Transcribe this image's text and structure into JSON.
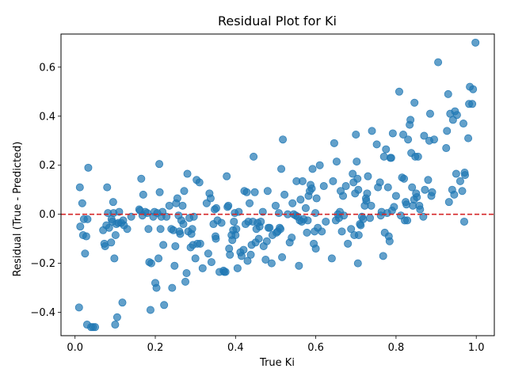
{
  "chart_data": {
    "type": "scatter",
    "title": "Residual Plot for Ki",
    "xlabel": "True Ki",
    "ylabel": "Residual (True - Predicted)",
    "xlim": [
      -0.035,
      1.045
    ],
    "ylim": [
      -0.495,
      0.735
    ],
    "xticks": [
      0.0,
      0.2,
      0.4,
      0.6,
      0.8,
      1.0
    ],
    "xtick_labels": [
      "0.0",
      "0.2",
      "0.4",
      "0.6",
      "0.8",
      "1.0"
    ],
    "yticks": [
      -0.4,
      -0.2,
      0.0,
      0.2,
      0.4,
      0.6
    ],
    "ytick_labels": [
      "−0.4",
      "−0.2",
      "0.0",
      "0.2",
      "0.4",
      "0.6"
    ],
    "grid": false,
    "legend": "none",
    "point_color": "#1f77b4",
    "reference_line": {
      "y": 0,
      "color": "#d62728",
      "style": "dashed"
    },
    "points": [
      [
        0.01,
        -0.38
      ],
      [
        0.012,
        0.11
      ],
      [
        0.013,
        -0.05
      ],
      [
        0.018,
        0.045
      ],
      [
        0.02,
        -0.085
      ],
      [
        0.022,
        -0.02
      ],
      [
        0.025,
        -0.16
      ],
      [
        0.028,
        -0.09
      ],
      [
        0.03,
        -0.45
      ],
      [
        0.031,
        -0.02
      ],
      [
        0.033,
        0.19
      ],
      [
        0.04,
        -0.46
      ],
      [
        0.045,
        -0.46
      ],
      [
        0.05,
        -0.46
      ],
      [
        0.07,
        -0.065
      ],
      [
        0.073,
        -0.12
      ],
      [
        0.075,
        -0.13
      ],
      [
        0.078,
        -0.045
      ],
      [
        0.08,
        0.11
      ],
      [
        0.082,
        0.005
      ],
      [
        0.085,
        -0.055
      ],
      [
        0.09,
        -0.115
      ],
      [
        0.091,
        -0.02
      ],
      [
        0.093,
        -0.03
      ],
      [
        0.095,
        0.05
      ],
      [
        0.096,
        0.005
      ],
      [
        0.098,
        -0.18
      ],
      [
        0.1,
        -0.45
      ],
      [
        0.101,
        -0.085
      ],
      [
        0.103,
        -0.04
      ],
      [
        0.105,
        -0.42
      ],
      [
        0.108,
        -0.035
      ],
      [
        0.11,
        0.01
      ],
      [
        0.115,
        -0.035
      ],
      [
        0.118,
        -0.36
      ],
      [
        0.12,
        -0.025
      ],
      [
        0.122,
        -0.045
      ],
      [
        0.13,
        -0.06
      ],
      [
        0.14,
        -0.01
      ],
      [
        0.16,
        0.02
      ],
      [
        0.162,
        0.015
      ],
      [
        0.165,
        0.145
      ],
      [
        0.168,
        -0.005
      ],
      [
        0.17,
        0.08
      ],
      [
        0.175,
        0.01
      ],
      [
        0.18,
        0.005
      ],
      [
        0.183,
        -0.06
      ],
      [
        0.185,
        -0.195
      ],
      [
        0.188,
        -0.39
      ],
      [
        0.19,
        -0.2
      ],
      [
        0.195,
        -0.01
      ],
      [
        0.198,
        0.01
      ],
      [
        0.2,
        -0.28
      ],
      [
        0.203,
        -0.3
      ],
      [
        0.205,
        0.005
      ],
      [
        0.208,
        -0.18
      ],
      [
        0.21,
        0.205
      ],
      [
        0.211,
        0.09
      ],
      [
        0.213,
        -0.06
      ],
      [
        0.215,
        -0.01
      ],
      [
        0.218,
        0.01
      ],
      [
        0.22,
        -0.125
      ],
      [
        0.222,
        -0.37
      ],
      [
        0.228,
        -0.01
      ],
      [
        0.235,
        0.035
      ],
      [
        0.24,
        -0.06
      ],
      [
        0.242,
        -0.3
      ],
      [
        0.245,
        -0.065
      ],
      [
        0.248,
        -0.21
      ],
      [
        0.25,
        -0.13
      ],
      [
        0.252,
        0.045
      ],
      [
        0.255,
        0.065
      ],
      [
        0.258,
        -0.005
      ],
      [
        0.26,
        -0.07
      ],
      [
        0.262,
        -0.08
      ],
      [
        0.265,
        -0.025
      ],
      [
        0.268,
        0.035
      ],
      [
        0.27,
        -0.04
      ],
      [
        0.272,
        0.095
      ],
      [
        0.275,
        -0.275
      ],
      [
        0.278,
        -0.24
      ],
      [
        0.28,
        0.165
      ],
      [
        0.282,
        -0.07
      ],
      [
        0.285,
        -0.015
      ],
      [
        0.288,
        -0.135
      ],
      [
        0.29,
        -0.08
      ],
      [
        0.292,
        -0.06
      ],
      [
        0.294,
        -0.125
      ],
      [
        0.296,
        -0.01
      ],
      [
        0.3,
        -0.18
      ],
      [
        0.303,
        0.14
      ],
      [
        0.305,
        -0.12
      ],
      [
        0.31,
        0.13
      ],
      [
        0.312,
        -0.12
      ],
      [
        0.318,
        -0.22
      ],
      [
        0.328,
        0.045
      ],
      [
        0.332,
        -0.16
      ],
      [
        0.335,
        0.085
      ],
      [
        0.338,
        0.065
      ],
      [
        0.34,
        -0.195
      ],
      [
        0.345,
        -0.04
      ],
      [
        0.348,
        0.02
      ],
      [
        0.35,
        -0.09
      ],
      [
        0.351,
        -0.1
      ],
      [
        0.352,
        0.025
      ],
      [
        0.355,
        -0.025
      ],
      [
        0.36,
        -0.235
      ],
      [
        0.365,
        -0.035
      ],
      [
        0.37,
        -0.23
      ],
      [
        0.372,
        -0.235
      ],
      [
        0.375,
        -0.235
      ],
      [
        0.378,
        0.155
      ],
      [
        0.38,
        0.03
      ],
      [
        0.382,
        0.035
      ],
      [
        0.384,
        -0.14
      ],
      [
        0.386,
        -0.165
      ],
      [
        0.39,
        -0.085
      ],
      [
        0.392,
        -0.105
      ],
      [
        0.394,
        -0.065
      ],
      [
        0.396,
        -0.03
      ],
      [
        0.398,
        0.005
      ],
      [
        0.4,
        -0.085
      ],
      [
        0.402,
        -0.06
      ],
      [
        0.405,
        -0.22
      ],
      [
        0.408,
        0.01
      ],
      [
        0.412,
        -0.155
      ],
      [
        0.415,
        -0.17
      ],
      [
        0.42,
        -0.145
      ],
      [
        0.422,
        0.095
      ],
      [
        0.425,
        -0.04
      ],
      [
        0.428,
        0.09
      ],
      [
        0.43,
        -0.19
      ],
      [
        0.432,
        -0.03
      ],
      [
        0.435,
        0.045
      ],
      [
        0.438,
        -0.165
      ],
      [
        0.44,
        -0.125
      ],
      [
        0.443,
        -0.03
      ],
      [
        0.445,
        0.235
      ],
      [
        0.448,
        0.09
      ],
      [
        0.45,
        -0.115
      ],
      [
        0.452,
        -0.06
      ],
      [
        0.455,
        -0.035
      ],
      [
        0.458,
        -0.1
      ],
      [
        0.46,
        -0.05
      ],
      [
        0.463,
        -0.03
      ],
      [
        0.468,
        0.01
      ],
      [
        0.47,
        -0.13
      ],
      [
        0.475,
        -0.185
      ],
      [
        0.478,
        -0.11
      ],
      [
        0.48,
        0.095
      ],
      [
        0.482,
        -0.055
      ],
      [
        0.485,
        -0.055
      ],
      [
        0.49,
        -0.2
      ],
      [
        0.492,
        -0.085
      ],
      [
        0.5,
        0.035
      ],
      [
        0.502,
        -0.075
      ],
      [
        0.505,
        -0.07
      ],
      [
        0.508,
        0.005
      ],
      [
        0.51,
        -0.055
      ],
      [
        0.512,
        -0.06
      ],
      [
        0.514,
        0.185
      ],
      [
        0.516,
        -0.175
      ],
      [
        0.518,
        0.305
      ],
      [
        0.522,
        0.08
      ],
      [
        0.53,
        0.0
      ],
      [
        0.535,
        -0.115
      ],
      [
        0.54,
        -0.095
      ],
      [
        0.542,
        0.045
      ],
      [
        0.545,
        0.0
      ],
      [
        0.55,
        -0.005
      ],
      [
        0.552,
        0.135
      ],
      [
        0.555,
        -0.01
      ],
      [
        0.558,
        -0.21
      ],
      [
        0.56,
        -0.025
      ],
      [
        0.562,
        0.06
      ],
      [
        0.565,
        -0.03
      ],
      [
        0.567,
        0.135
      ],
      [
        0.57,
        -0.02
      ],
      [
        0.575,
        0.025
      ],
      [
        0.578,
        -0.075
      ],
      [
        0.58,
        -0.025
      ],
      [
        0.582,
        0.075
      ],
      [
        0.585,
        0.095
      ],
      [
        0.587,
        0.12
      ],
      [
        0.59,
        0.105
      ],
      [
        0.592,
        0.185
      ],
      [
        0.595,
        -0.12
      ],
      [
        0.597,
        -0.07
      ],
      [
        0.599,
        0.005
      ],
      [
        0.6,
        -0.14
      ],
      [
        0.602,
        0.065
      ],
      [
        0.605,
        -0.055
      ],
      [
        0.61,
        0.2
      ],
      [
        0.615,
        -0.07
      ],
      [
        0.62,
        0.115
      ],
      [
        0.625,
        -0.03
      ],
      [
        0.64,
        -0.18
      ],
      [
        0.643,
        0.135
      ],
      [
        0.646,
        0.29
      ],
      [
        0.65,
        -0.025
      ],
      [
        0.652,
        0.215
      ],
      [
        0.655,
        0.0
      ],
      [
        0.658,
        -0.015
      ],
      [
        0.66,
        0.01
      ],
      [
        0.662,
        0.095
      ],
      [
        0.665,
        -0.07
      ],
      [
        0.668,
        0.075
      ],
      [
        0.67,
        -0.005
      ],
      [
        0.675,
        0.115
      ],
      [
        0.68,
        -0.12
      ],
      [
        0.688,
        -0.06
      ],
      [
        0.692,
        0.165
      ],
      [
        0.694,
        0.13
      ],
      [
        0.696,
        -0.085
      ],
      [
        0.698,
        0.085
      ],
      [
        0.7,
        0.325
      ],
      [
        0.702,
        0.215
      ],
      [
        0.704,
        0.145
      ],
      [
        0.705,
        -0.2
      ],
      [
        0.706,
        0.1
      ],
      [
        0.707,
        -0.085
      ],
      [
        0.71,
        -0.04
      ],
      [
        0.712,
        -0.045
      ],
      [
        0.715,
        -0.01
      ],
      [
        0.718,
        -0.02
      ],
      [
        0.722,
        0.035
      ],
      [
        0.725,
        0.065
      ],
      [
        0.726,
        0.055
      ],
      [
        0.728,
        0.085
      ],
      [
        0.73,
        0.155
      ],
      [
        0.735,
        -0.015
      ],
      [
        0.738,
        0.035
      ],
      [
        0.74,
        0.34
      ],
      [
        0.752,
        0.285
      ],
      [
        0.755,
        0.11
      ],
      [
        0.76,
        0.13
      ],
      [
        0.762,
        -0.005
      ],
      [
        0.764,
        0.01
      ],
      [
        0.768,
        -0.17
      ],
      [
        0.77,
        0.235
      ],
      [
        0.772,
        -0.075
      ],
      [
        0.775,
        0.265
      ],
      [
        0.778,
        0.005
      ],
      [
        0.78,
        0.11
      ],
      [
        0.782,
        -0.09
      ],
      [
        0.784,
        -0.11
      ],
      [
        0.786,
        0.23
      ],
      [
        0.788,
        0.23
      ],
      [
        0.79,
        0.015
      ],
      [
        0.792,
        0.33
      ],
      [
        0.795,
        0.03
      ],
      [
        0.8,
        0.075
      ],
      [
        0.808,
        0.5
      ],
      [
        0.812,
        -0.005
      ],
      [
        0.815,
        0.15
      ],
      [
        0.818,
        0.325
      ],
      [
        0.82,
        0.145
      ],
      [
        0.822,
        -0.025
      ],
      [
        0.824,
        0.05
      ],
      [
        0.826,
        0.04
      ],
      [
        0.828,
        -0.025
      ],
      [
        0.83,
        0.305
      ],
      [
        0.834,
        0.365
      ],
      [
        0.836,
        0.385
      ],
      [
        0.838,
        0.25
      ],
      [
        0.84,
        0.11
      ],
      [
        0.842,
        0.035
      ],
      [
        0.845,
        0.06
      ],
      [
        0.846,
        0.455
      ],
      [
        0.848,
        0.235
      ],
      [
        0.85,
        0.085
      ],
      [
        0.852,
        0.07
      ],
      [
        0.855,
        0.235
      ],
      [
        0.858,
        0.035
      ],
      [
        0.86,
        0.02
      ],
      [
        0.868,
        -0.01
      ],
      [
        0.87,
        0.32
      ],
      [
        0.872,
        0.1
      ],
      [
        0.88,
        0.14
      ],
      [
        0.883,
        0.3
      ],
      [
        0.885,
        0.41
      ],
      [
        0.888,
        0.075
      ],
      [
        0.89,
        0.09
      ],
      [
        0.895,
        0.305
      ],
      [
        0.905,
        0.62
      ],
      [
        0.925,
        0.27
      ],
      [
        0.927,
        0.34
      ],
      [
        0.93,
        0.49
      ],
      [
        0.932,
        0.05
      ],
      [
        0.935,
        0.41
      ],
      [
        0.94,
        0.1
      ],
      [
        0.942,
        0.385
      ],
      [
        0.945,
        0.08
      ],
      [
        0.947,
        0.42
      ],
      [
        0.95,
        0.165
      ],
      [
        0.952,
        0.405
      ],
      [
        0.96,
        0.135
      ],
      [
        0.965,
        0.095
      ],
      [
        0.968,
        0.37
      ],
      [
        0.97,
        -0.03
      ],
      [
        0.971,
        0.17
      ],
      [
        0.972,
        0.16
      ],
      [
        0.98,
        0.31
      ],
      [
        0.982,
        0.45
      ],
      [
        0.984,
        0.52
      ],
      [
        0.99,
        0.45
      ],
      [
        0.992,
        0.51
      ],
      [
        0.998,
        0.7
      ]
    ]
  }
}
